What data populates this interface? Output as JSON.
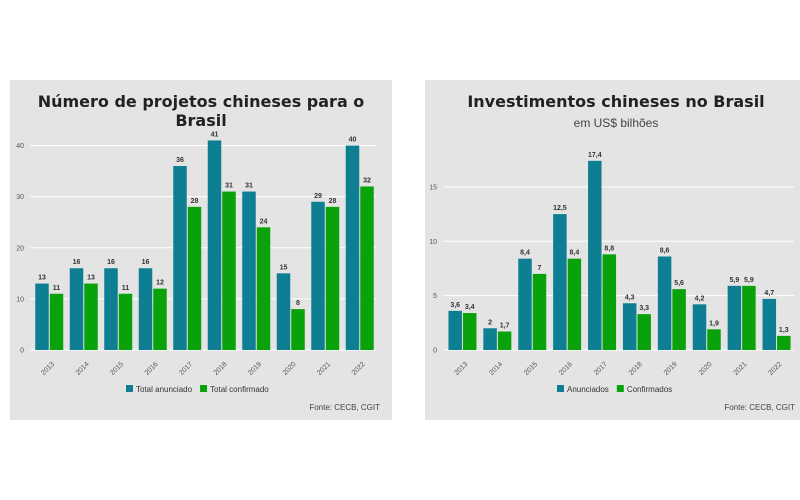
{
  "colors": {
    "series1": "#0e7e93",
    "series2": "#0aa20a",
    "panel_bg": "#e4e4e4",
    "grid": "#ffffff"
  },
  "chart_data": [
    {
      "type": "bar",
      "title": "Número de projetos chineses para o Brasil",
      "subtitle": "",
      "source": "Fonte: CECB, CGIT",
      "categories": [
        "2013",
        "2014",
        "2015",
        "2016",
        "2017",
        "2018",
        "2019",
        "2020",
        "2021",
        "2022"
      ],
      "series": [
        {
          "name": "Total anunciado",
          "values": [
            13,
            16,
            16,
            16,
            36,
            41,
            31,
            15,
            29,
            40
          ],
          "labels": [
            "13",
            "16",
            "16",
            "16",
            "36",
            "41",
            "31",
            "15",
            "29",
            "40"
          ]
        },
        {
          "name": "Total confirmado",
          "values": [
            11,
            13,
            11,
            12,
            28,
            31,
            24,
            8,
            28,
            32
          ],
          "labels": [
            "11",
            "13",
            "11",
            "12",
            "28",
            "31",
            "24",
            "8",
            "28",
            "32"
          ]
        }
      ],
      "ylim": [
        0,
        45
      ],
      "yticks": [
        "0",
        "10",
        "20",
        "30",
        "40"
      ],
      "grid": true,
      "legend": "bottom"
    },
    {
      "type": "bar",
      "title": "Investimentos chineses no Brasil",
      "subtitle": "em US$ bilhões",
      "source": "Fonte: CECB, CGIT",
      "categories": [
        "2013",
        "2014",
        "2015",
        "2016",
        "2017",
        "2018",
        "2019",
        "2020",
        "2021",
        "2022"
      ],
      "series": [
        {
          "name": "Anunciados",
          "values": [
            3.6,
            2,
            8.4,
            12.5,
            17.4,
            4.3,
            8.6,
            4.2,
            5.9,
            4.7
          ],
          "labels": [
            "3,6",
            "2",
            "8,4",
            "12,5",
            "17,4",
            "4,3",
            "8,6",
            "4,2",
            "5,9",
            "4,7"
          ]
        },
        {
          "name": "Confirmados",
          "values": [
            3.4,
            1.7,
            7,
            8.4,
            8.8,
            3.3,
            5.6,
            1.9,
            5.9,
            1.3
          ],
          "labels": [
            "3,4",
            "1,7",
            "7",
            "8,4",
            "8,8",
            "3,3",
            "5,6",
            "1,9",
            "5,9",
            "1,3"
          ]
        }
      ],
      "ylim": [
        0,
        19.5
      ],
      "yticks": [
        "0",
        "5",
        "10",
        "15"
      ],
      "grid": true,
      "legend": "bottom"
    }
  ]
}
